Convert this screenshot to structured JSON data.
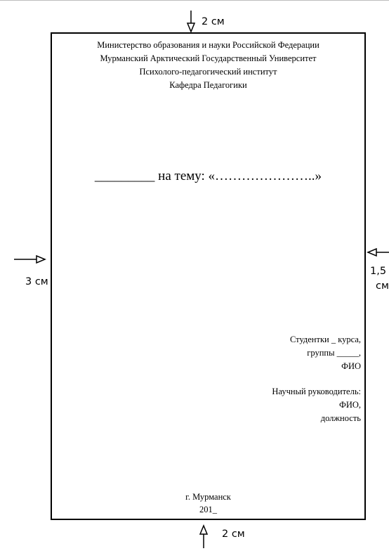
{
  "header": {
    "line1": "Министерство образования и науки Российской Федерации",
    "line2": "Мурманский Арктический Государственный Университет",
    "line3": "Психолого-педагогический институт",
    "line4": "Кафедра Педагогики"
  },
  "topic": "_________ на тему: «…………………..»",
  "student": {
    "line1": "Студентки _ курса,",
    "line2": "группы _____,",
    "line3": "ФИО"
  },
  "advisor": {
    "line1": "Научный руководитель:",
    "line2": "ФИО,",
    "line3": "должность"
  },
  "footer": {
    "city": "г. Мурманск",
    "year": "201_"
  },
  "margins": {
    "top": "2 см",
    "bottom": "2 см",
    "left": "3 см",
    "right_value": "1,5",
    "right_unit": "см"
  }
}
